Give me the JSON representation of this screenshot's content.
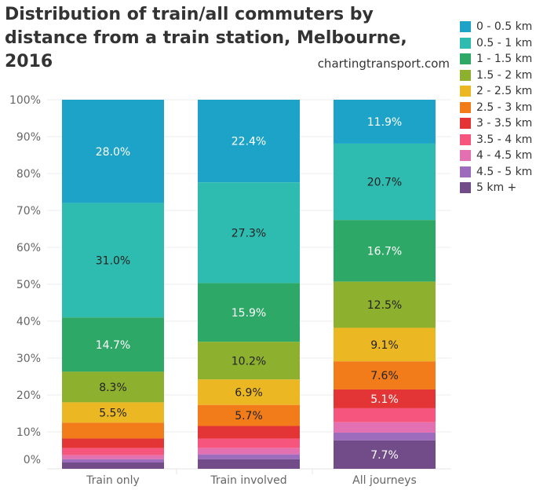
{
  "chart_data": {
    "type": "bar",
    "stacked": true,
    "title": "Distribution of train/all commuters by distance from a train station, Melbourne, 2016",
    "source": "chartingtransport.com",
    "xlabel": "",
    "ylabel": "",
    "ylim": [
      0,
      100
    ],
    "yticks": [
      "0%",
      "10%",
      "20%",
      "30%",
      "40%",
      "50%",
      "60%",
      "70%",
      "80%",
      "90%",
      "100%"
    ],
    "categories": [
      "Train only",
      "Train involved",
      "All journeys"
    ],
    "legend_position": "right",
    "series": [
      {
        "name": "0 - 0.5 km",
        "color": "#1ea3c8",
        "label_color": "#ffffff",
        "values": [
          28.0,
          22.4,
          11.9
        ]
      },
      {
        "name": "0.5 - 1 km",
        "color": "#2fbcb0",
        "label_color": "#222222",
        "values": [
          31.0,
          27.3,
          20.7
        ]
      },
      {
        "name": "1 - 1.5 km",
        "color": "#2ea866",
        "label_color": "#ffffff",
        "values": [
          14.7,
          15.9,
          16.7
        ]
      },
      {
        "name": "1.5 - 2 km",
        "color": "#8db02e",
        "label_color": "#222222",
        "values": [
          8.3,
          10.2,
          12.5
        ]
      },
      {
        "name": "2 - 2.5 km",
        "color": "#ebb823",
        "label_color": "#222222",
        "values": [
          5.5,
          6.9,
          9.1
        ]
      },
      {
        "name": "2.5 - 3 km",
        "color": "#f27c1a",
        "label_color": "#222222",
        "values": [
          4.3,
          5.7,
          7.6
        ]
      },
      {
        "name": "3 - 3.5 km",
        "color": "#e33535",
        "label_color": "#ffffff",
        "values": [
          2.6,
          3.4,
          5.1
        ]
      },
      {
        "name": "3.5 - 4 km",
        "color": "#f6567d",
        "label_color": "#ffffff",
        "values": [
          1.9,
          2.6,
          3.8
        ]
      },
      {
        "name": "4 - 4.5 km",
        "color": "#e370b0",
        "label_color": "#ffffff",
        "values": [
          1.1,
          1.7,
          2.8
        ]
      },
      {
        "name": "4.5 - 5 km",
        "color": "#9d6cbd",
        "label_color": "#ffffff",
        "values": [
          0.9,
          1.3,
          2.1
        ]
      },
      {
        "name": "5 km +",
        "color": "#714c89",
        "label_color": "#ffffff",
        "values": [
          1.7,
          2.6,
          7.7
        ]
      }
    ],
    "data_labels": [
      [
        "28.0%",
        "31.0%",
        "14.7%",
        "8.3%",
        "5.5%",
        null,
        null,
        null,
        null,
        null,
        null
      ],
      [
        "22.4%",
        "27.3%",
        "15.9%",
        "10.2%",
        "6.9%",
        "5.7%",
        null,
        null,
        null,
        null,
        null
      ],
      [
        "11.9%",
        "20.7%",
        "16.7%",
        "12.5%",
        "9.1%",
        "7.6%",
        "5.1%",
        null,
        null,
        null,
        "7.7%"
      ]
    ]
  }
}
